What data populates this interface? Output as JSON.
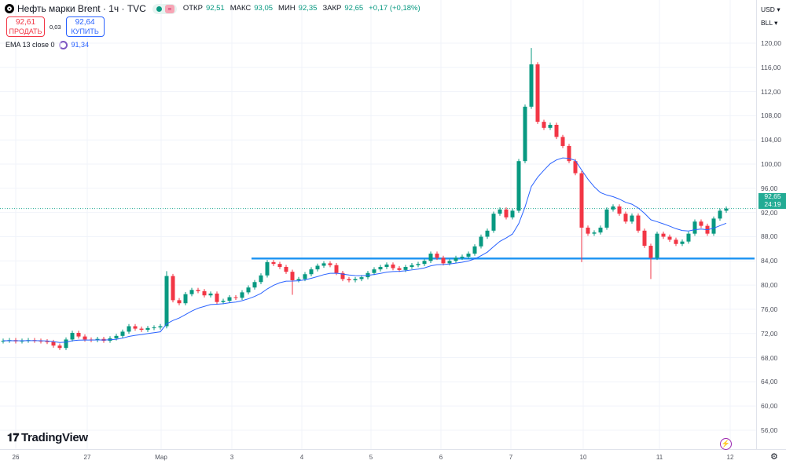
{
  "header": {
    "title": "Нефть марки Brent · 1ч · TVC",
    "ohlc": [
      {
        "label": "ОТКР",
        "value": "92,51"
      },
      {
        "label": "МАКС",
        "value": "93,05"
      },
      {
        "label": "МИН",
        "value": "92,35"
      },
      {
        "label": "ЗАКР",
        "value": "92,65"
      }
    ],
    "change": "+0,17 (+0,18%)",
    "pill_symbol": "="
  },
  "trade": {
    "sell_price": "92,61",
    "sell_label": "ПРОДАТЬ",
    "spread": "0,03",
    "buy_price": "92,64",
    "buy_label": "КУПИТЬ"
  },
  "indicator": {
    "label": "EMA 13 close 0",
    "value": "91,34"
  },
  "right_axis": {
    "currency": "USD",
    "unit": "BLL",
    "last_price": "92,65",
    "countdown": "24:19"
  },
  "branding": {
    "logo": "TradingView"
  },
  "colors": {
    "up": "#089981",
    "down": "#f23645",
    "ema": "#2962ff",
    "hline": "#2196f3",
    "last_price": "#22ab94"
  },
  "chart_data": {
    "type": "candlestick",
    "interval": "1h (approximate 2-hour sampled closes)",
    "ylim": [
      54,
      122
    ],
    "y_ticks": [
      "120,00",
      "116,00",
      "112,00",
      "108,00",
      "104,00",
      "100,00",
      "96,00",
      "92,00",
      "88,00",
      "84,00",
      "80,00",
      "76,00",
      "72,00",
      "68,00",
      "64,00",
      "60,00",
      "56,00"
    ],
    "x_ticks": [
      "26",
      "27",
      "Мар",
      "3",
      "4",
      "5",
      "6",
      "7",
      "10",
      "11",
      "12"
    ],
    "grid": true,
    "closes": [
      70.8,
      70.9,
      70.7,
      70.8,
      70.9,
      70.8,
      70.7,
      70.6,
      70.0,
      69.6,
      71.0,
      72.1,
      71.5,
      71.0,
      70.9,
      71.1,
      70.8,
      71.2,
      71.6,
      72.3,
      73.2,
      72.8,
      72.6,
      72.9,
      73.0,
      73.2,
      81.5,
      77.5,
      77.0,
      78.5,
      79.2,
      79.0,
      78.3,
      78.6,
      77.2,
      77.4,
      78.0,
      77.9,
      78.8,
      79.6,
      80.5,
      81.6,
      83.8,
      83.5,
      83.0,
      82.2,
      80.8,
      81.0,
      81.8,
      82.6,
      83.2,
      83.6,
      83.3,
      82.0,
      81.0,
      80.8,
      81.0,
      81.3,
      82.0,
      82.6,
      83.0,
      83.4,
      82.8,
      82.5,
      83.0,
      83.3,
      83.5,
      84.0,
      85.2,
      84.5,
      83.6,
      84.0,
      84.5,
      84.7,
      85.2,
      86.4,
      88.0,
      89.0,
      91.8,
      92.5,
      91.2,
      92.3,
      100.5,
      109.5,
      116.5,
      107.0,
      106.0,
      106.5,
      104.5,
      103.0,
      100.5,
      98.5,
      89.5,
      88.5,
      88.7,
      89.5,
      92.5,
      93.0,
      91.8,
      90.5,
      91.5,
      89.0,
      86.5,
      84.5,
      88.5,
      88.0,
      87.5,
      86.8,
      87.2,
      88.5,
      90.5,
      89.8,
      88.5,
      91.0,
      92.3,
      92.65
    ],
    "extremes": [
      {
        "index": 26,
        "high": 82.3
      },
      {
        "index": 46,
        "low": 78.4
      },
      {
        "index": 84,
        "high": 119.2
      },
      {
        "index": 92,
        "low": 83.8
      },
      {
        "index": 103,
        "low": 81.0
      }
    ],
    "ema_period": 13,
    "horizontal_line": 84.4,
    "last_price": 92.65
  }
}
